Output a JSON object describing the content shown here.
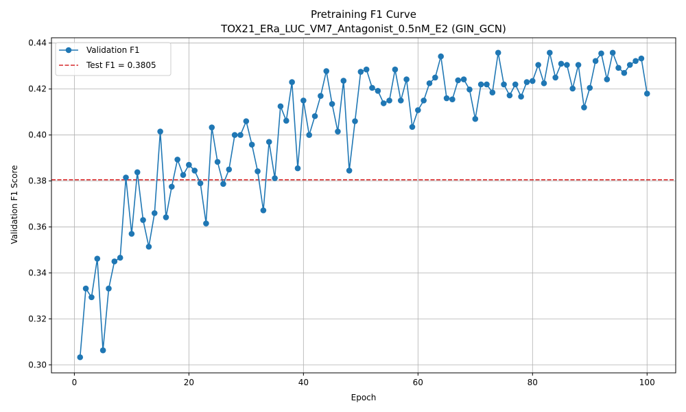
{
  "chart_data": {
    "type": "line",
    "title": "Pretraining F1 Curve",
    "subtitle": "TOX21_ERa_LUC_VM7_Antagonist_0.5nM_E2 (GIN_GCN)",
    "xlabel": "Epoch",
    "ylabel": "Validation F1 Score",
    "xlim": [
      -4,
      105
    ],
    "ylim": [
      0.2965,
      0.4423
    ],
    "xticks": [
      0,
      20,
      40,
      60,
      80,
      100
    ],
    "yticks": [
      0.3,
      0.32,
      0.34,
      0.36,
      0.38,
      0.4,
      0.42,
      0.44
    ],
    "grid": true,
    "legend_position": "top-left",
    "series": [
      {
        "name": "Validation F1",
        "color": "#1f77b4",
        "marker": "circle",
        "x": [
          1,
          2,
          3,
          4,
          5,
          6,
          7,
          8,
          9,
          10,
          11,
          12,
          13,
          14,
          15,
          16,
          17,
          18,
          19,
          20,
          21,
          22,
          23,
          24,
          25,
          26,
          27,
          28,
          29,
          30,
          31,
          32,
          33,
          34,
          35,
          36,
          37,
          38,
          39,
          40,
          41,
          42,
          43,
          44,
          45,
          46,
          47,
          48,
          49,
          50,
          51,
          52,
          53,
          54,
          55,
          56,
          57,
          58,
          59,
          60,
          61,
          62,
          63,
          64,
          65,
          66,
          67,
          68,
          69,
          70,
          71,
          72,
          73,
          74,
          75,
          76,
          77,
          78,
          79,
          80,
          81,
          82,
          83,
          84,
          85,
          86,
          87,
          88,
          89,
          90,
          91,
          92,
          93,
          94,
          95,
          96,
          97,
          98,
          99,
          100
        ],
        "values": [
          0.3033,
          0.3332,
          0.3294,
          0.3462,
          0.3063,
          0.3332,
          0.345,
          0.3466,
          0.3815,
          0.357,
          0.3838,
          0.363,
          0.3514,
          0.366,
          0.4015,
          0.3642,
          0.3775,
          0.3893,
          0.3826,
          0.387,
          0.3845,
          0.379,
          0.3615,
          0.4033,
          0.3883,
          0.3787,
          0.385,
          0.4,
          0.4,
          0.406,
          0.3958,
          0.3842,
          0.3672,
          0.397,
          0.3812,
          0.4125,
          0.4062,
          0.423,
          0.3855,
          0.415,
          0.4,
          0.4082,
          0.417,
          0.4278,
          0.4135,
          0.4015,
          0.4236,
          0.3845,
          0.406,
          0.4275,
          0.4285,
          0.4205,
          0.4192,
          0.4138,
          0.415,
          0.4285,
          0.415,
          0.4242,
          0.4035,
          0.4108,
          0.415,
          0.4225,
          0.425,
          0.4342,
          0.416,
          0.4155,
          0.4238,
          0.4242,
          0.4198,
          0.407,
          0.422,
          0.422,
          0.4185,
          0.4358,
          0.422,
          0.4172,
          0.422,
          0.4167,
          0.423,
          0.4235,
          0.4305,
          0.4225,
          0.4358,
          0.425,
          0.431,
          0.4305,
          0.4202,
          0.4305,
          0.412,
          0.4205,
          0.4322,
          0.4355,
          0.4242,
          0.4358,
          0.4292,
          0.427,
          0.4305,
          0.4322,
          0.4333,
          0.418
        ]
      }
    ],
    "reference_lines": [
      {
        "name": "Test F1 = 0.3805",
        "y": 0.3805,
        "color": "#d62728",
        "style": "dashed"
      }
    ]
  }
}
